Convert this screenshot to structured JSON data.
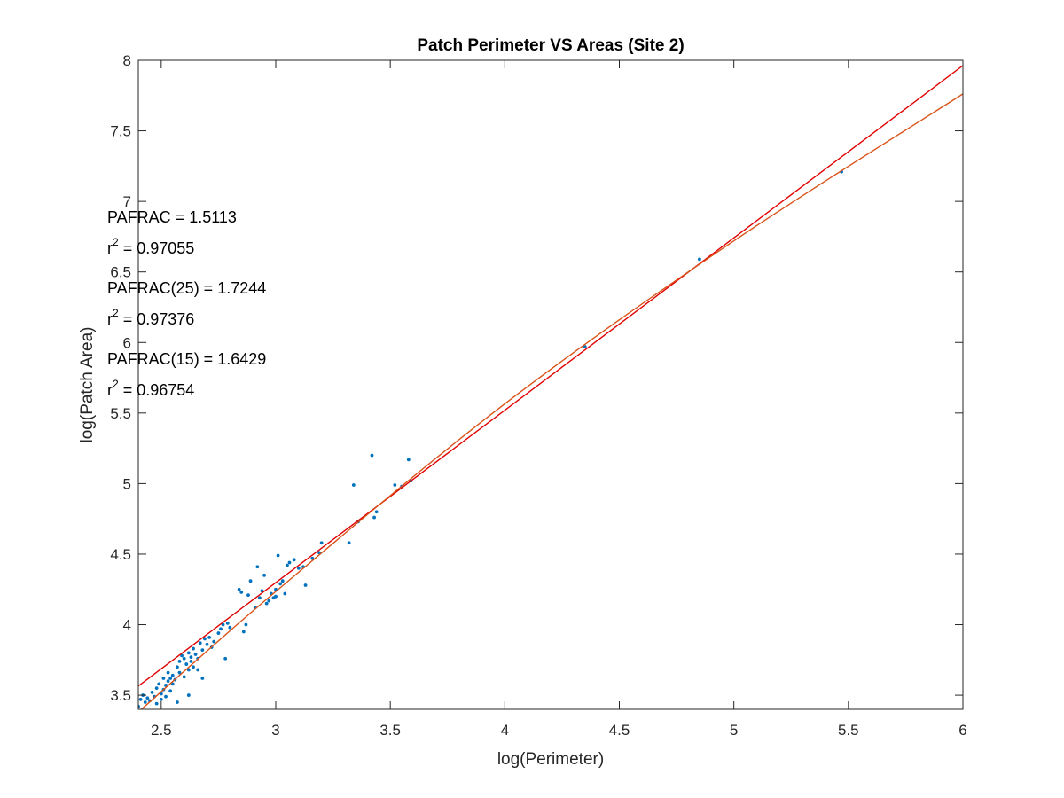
{
  "chart_data": {
    "type": "scatter",
    "title": "Patch Perimeter VS Areas (Site 2)",
    "xlabel": "log(Perimeter)",
    "ylabel": "log(Patch Area)",
    "xlim": [
      2.4,
      6.0
    ],
    "ylim": [
      3.4,
      8.0
    ],
    "xticks": [
      2.5,
      3,
      3.5,
      4,
      4.5,
      5,
      5.5,
      6
    ],
    "xtick_labels": [
      "2.5",
      "3",
      "3.5",
      "4",
      "4.5",
      "5",
      "5.5",
      "6"
    ],
    "yticks": [
      3.5,
      4,
      4.5,
      5,
      5.5,
      6,
      6.5,
      7,
      7.5,
      8
    ],
    "ytick_labels": [
      "3.5",
      "4",
      "4.5",
      "5",
      "5.5",
      "6",
      "6.5",
      "7",
      "7.5",
      "8"
    ],
    "grid": false,
    "annotations": [
      {
        "label": "PAFRAC = 1.5113",
        "r2_value": "0.97055"
      },
      {
        "label": "PAFRAC(25) = 1.7244",
        "r2_value": "0.97376"
      },
      {
        "label": "PAFRAC(15) = 1.6429",
        "r2_value": "0.96754"
      }
    ],
    "r2_base": "r",
    "r2_exp": "2",
    "r2_suffix": " = ",
    "series": [
      {
        "kind": "points",
        "color": "#0072BD",
        "points": [
          [
            2.4,
            3.42
          ],
          [
            2.41,
            3.47
          ],
          [
            2.42,
            3.5
          ],
          [
            2.43,
            3.45
          ],
          [
            2.44,
            3.48
          ],
          [
            2.45,
            3.46
          ],
          [
            2.46,
            3.52
          ],
          [
            2.47,
            3.49
          ],
          [
            2.48,
            3.55
          ],
          [
            2.48,
            3.44
          ],
          [
            2.49,
            3.58
          ],
          [
            2.5,
            3.51
          ],
          [
            2.5,
            3.47
          ],
          [
            2.51,
            3.62
          ],
          [
            2.51,
            3.54
          ],
          [
            2.52,
            3.57
          ],
          [
            2.52,
            3.49
          ],
          [
            2.53,
            3.6
          ],
          [
            2.53,
            3.66
          ],
          [
            2.54,
            3.53
          ],
          [
            2.54,
            3.62
          ],
          [
            2.55,
            3.58
          ],
          [
            2.55,
            3.64
          ],
          [
            2.56,
            3.61
          ],
          [
            2.57,
            3.7
          ],
          [
            2.58,
            3.74
          ],
          [
            2.58,
            3.66
          ],
          [
            2.59,
            3.78
          ],
          [
            2.6,
            3.63
          ],
          [
            2.6,
            3.76
          ],
          [
            2.61,
            3.72
          ],
          [
            2.62,
            3.8
          ],
          [
            2.62,
            3.68
          ],
          [
            2.63,
            3.74
          ],
          [
            2.64,
            3.83
          ],
          [
            2.64,
            3.7
          ],
          [
            2.65,
            3.79
          ],
          [
            2.66,
            3.76
          ],
          [
            2.67,
            3.87
          ],
          [
            2.68,
            3.82
          ],
          [
            2.68,
            3.62
          ],
          [
            2.69,
            3.9
          ],
          [
            2.7,
            3.86
          ],
          [
            2.71,
            3.91
          ],
          [
            2.72,
            3.84
          ],
          [
            2.73,
            3.88
          ],
          [
            2.75,
            3.94
          ],
          [
            2.76,
            3.97
          ],
          [
            2.77,
            4.0
          ],
          [
            2.78,
            3.76
          ],
          [
            2.79,
            4.01
          ],
          [
            2.8,
            3.98
          ],
          [
            2.62,
            3.5
          ],
          [
            2.57,
            3.45
          ],
          [
            2.63,
            3.77
          ],
          [
            2.66,
            3.68
          ],
          [
            2.84,
            4.25
          ],
          [
            2.85,
            4.23
          ],
          [
            2.86,
            3.95
          ],
          [
            2.87,
            4.0
          ],
          [
            2.88,
            4.21
          ],
          [
            2.89,
            4.31
          ],
          [
            2.91,
            4.12
          ],
          [
            2.92,
            4.41
          ],
          [
            2.93,
            4.19
          ],
          [
            2.94,
            4.24
          ],
          [
            2.95,
            4.35
          ],
          [
            2.96,
            4.15
          ],
          [
            2.97,
            4.17
          ],
          [
            2.98,
            4.22
          ],
          [
            2.99,
            4.19
          ],
          [
            3.0,
            4.25
          ],
          [
            3.0,
            4.2
          ],
          [
            3.01,
            4.49
          ],
          [
            3.02,
            4.29
          ],
          [
            3.03,
            4.31
          ],
          [
            3.04,
            4.22
          ],
          [
            3.05,
            4.42
          ],
          [
            3.06,
            4.44
          ],
          [
            3.08,
            4.46
          ],
          [
            3.1,
            4.4
          ],
          [
            3.12,
            4.41
          ],
          [
            3.13,
            4.28
          ],
          [
            3.16,
            4.47
          ],
          [
            3.19,
            4.51
          ],
          [
            3.2,
            4.58
          ],
          [
            3.32,
            4.58
          ],
          [
            3.34,
            4.99
          ],
          [
            3.36,
            4.73
          ],
          [
            3.42,
            5.2
          ],
          [
            3.43,
            4.76
          ],
          [
            3.44,
            4.8
          ],
          [
            3.52,
            4.99
          ],
          [
            3.55,
            4.98
          ],
          [
            3.58,
            5.17
          ],
          [
            3.59,
            5.02
          ],
          [
            4.35,
            5.97
          ],
          [
            4.85,
            6.59
          ],
          [
            5.47,
            7.21
          ]
        ]
      },
      {
        "kind": "line",
        "color": "#E00000",
        "points": [
          [
            2.4,
            3.565
          ],
          [
            6.0,
            7.963
          ]
        ]
      },
      {
        "kind": "curve",
        "color": "#D95319",
        "points": [
          [
            2.4,
            3.38
          ],
          [
            3.0,
            4.235
          ],
          [
            4.0,
            5.565
          ],
          [
            5.0,
            6.72
          ],
          [
            6.0,
            7.762
          ]
        ]
      }
    ]
  }
}
